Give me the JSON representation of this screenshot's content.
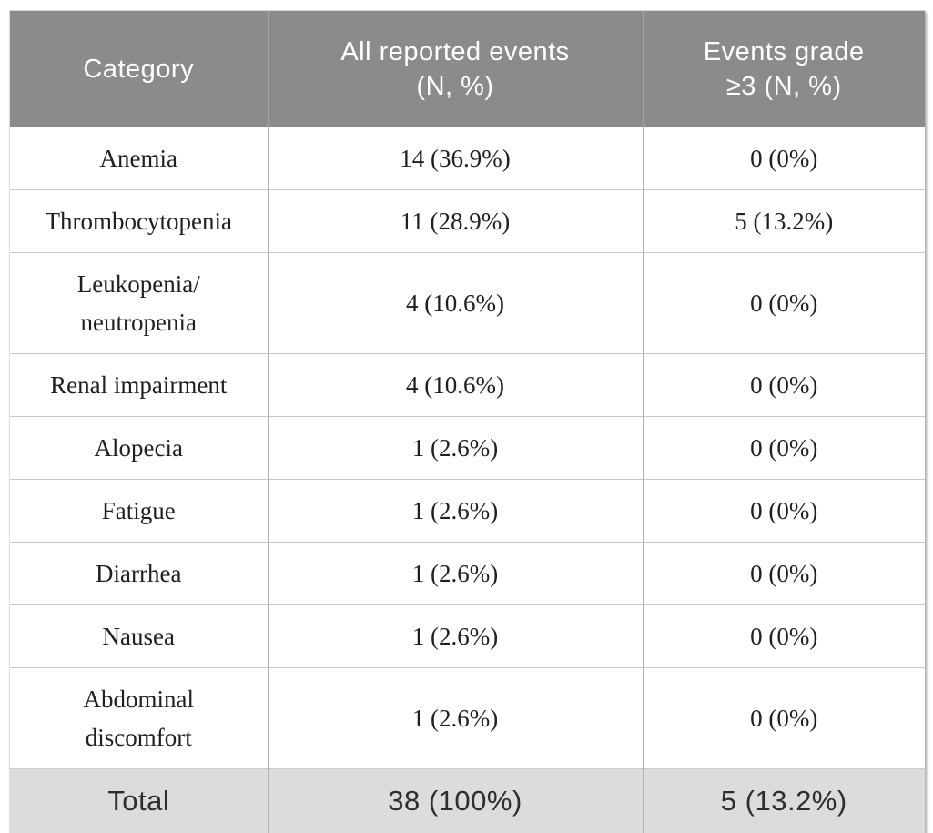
{
  "chart_data": {
    "type": "table",
    "columns": [
      "Category",
      "All reported events\n(N, %)",
      "Events grade\n≥3 (N, %)"
    ],
    "rows": [
      [
        "Anemia",
        "14 (36.9%)",
        "0 (0%)"
      ],
      [
        "Thrombocytopenia",
        "11 (28.9%)",
        "5 (13.2%)"
      ],
      [
        "Leukopenia/\nneutropenia",
        "4 (10.6%)",
        "0 (0%)"
      ],
      [
        "Renal impairment",
        "4 (10.6%)",
        "0 (0%)"
      ],
      [
        "Alopecia",
        "1 (2.6%)",
        "0 (0%)"
      ],
      [
        "Fatigue",
        "1 (2.6%)",
        "0 (0%)"
      ],
      [
        "Diarrhea",
        "1 (2.6%)",
        "0 (0%)"
      ],
      [
        "Nausea",
        "1 (2.6%)",
        "0 (0%)"
      ],
      [
        "Abdominal\ndiscomfort",
        "1 (2.6%)",
        "0 (0%)"
      ]
    ],
    "total_row": [
      "Total",
      "38 (100%)",
      "5 (13.2%)"
    ]
  },
  "colors": {
    "header_bg": "#8b8b8b",
    "header_text": "#ffffff",
    "total_bg": "#dcdcdc",
    "body_text": "#1f1f1f",
    "border_horizontal": "#c9c9c9",
    "border_vertical": "#b2b2b2"
  }
}
